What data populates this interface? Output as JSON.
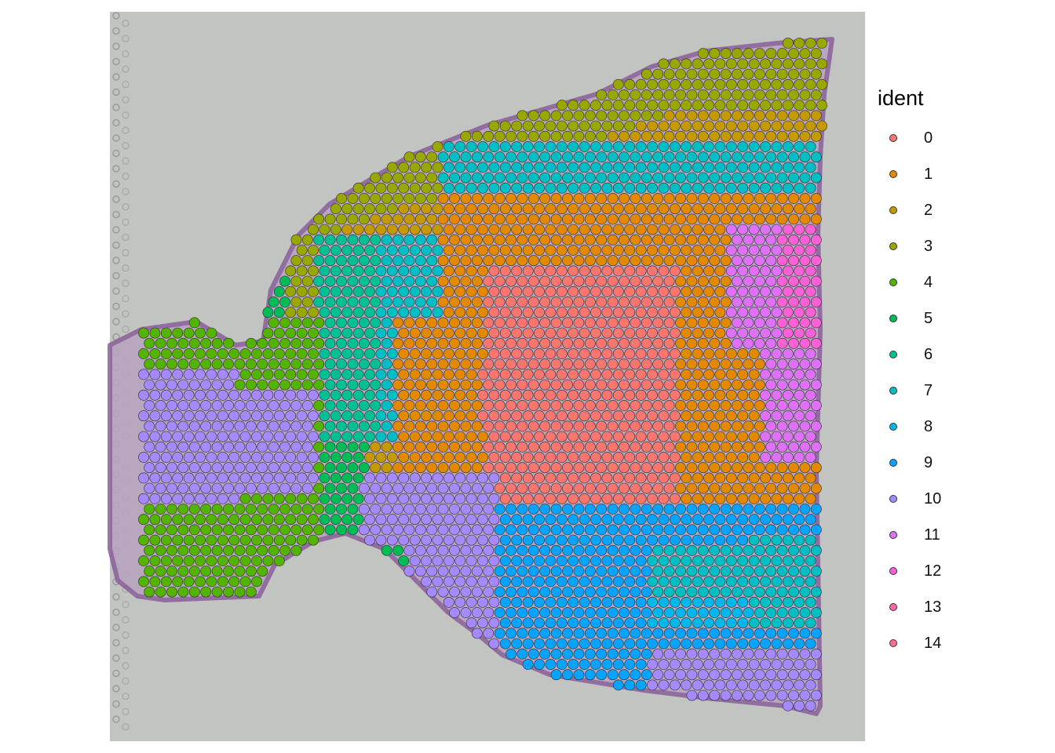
{
  "chart_data": {
    "type": "scatter",
    "subtype": "spatial spot plot over tissue image",
    "legend_title": "ident",
    "legend_position": "right",
    "grid": false,
    "axes_visible": false,
    "clusters": [
      {
        "label": "0",
        "color": "#F8766D"
      },
      {
        "label": "1",
        "color": "#E38900"
      },
      {
        "label": "2",
        "color": "#C49A00"
      },
      {
        "label": "3",
        "color": "#99A800"
      },
      {
        "label": "4",
        "color": "#53B400"
      },
      {
        "label": "5",
        "color": "#00BC56"
      },
      {
        "label": "6",
        "color": "#00C094"
      },
      {
        "label": "7",
        "color": "#00BFC4"
      },
      {
        "label": "8",
        "color": "#00B6EB"
      },
      {
        "label": "9",
        "color": "#06A4FF"
      },
      {
        "label": "10",
        "color": "#A58AFF"
      },
      {
        "label": "11",
        "color": "#DF70F8"
      },
      {
        "label": "12",
        "color": "#FB61D7"
      },
      {
        "label": "13",
        "color": "#FF66A8"
      },
      {
        "label": "14",
        "color": "#FF6C91"
      }
    ],
    "region_cluster_order": [
      "2",
      "3",
      "5",
      "6",
      "7",
      "1",
      "0",
      "8",
      "9",
      "10",
      "4",
      "11",
      "12",
      "13",
      "14"
    ]
  }
}
